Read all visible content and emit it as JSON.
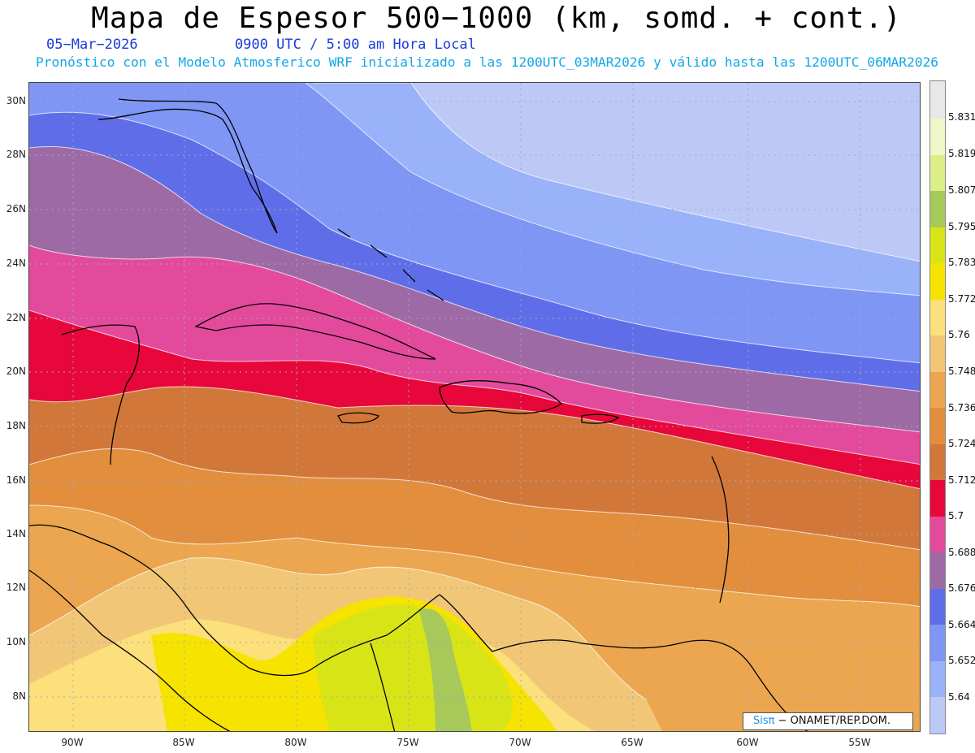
{
  "header": {
    "title": "Mapa de Espesor 500−1000 (km, somd. + cont.)",
    "date": "05−Mar−2026",
    "time": "0900 UTC / 5:00 am Hora Local",
    "subtitle": "Pronóstico con el Modelo Atmosferico WRF inicializado a las 1200UTC_03MAR2026 y válido hasta las  1200UTC_06MAR2026"
  },
  "map": {
    "lat_labels": [
      "30N",
      "28N",
      "26N",
      "24N",
      "22N",
      "20N",
      "18N",
      "16N",
      "14N",
      "12N",
      "10N",
      "8N"
    ],
    "lon_labels": [
      "90W",
      "85W",
      "80W",
      "75W",
      "70W",
      "65W",
      "60W",
      "55W"
    ],
    "credit_logo": "Sisπ",
    "credit_text": " − ONAMET/REP.DOM."
  },
  "colorbar": {
    "labels": [
      "5.64",
      "5.652",
      "5.664",
      "5.676",
      "5.688",
      "5.7",
      "5.712",
      "5.724",
      "5.736",
      "5.748",
      "5.76",
      "5.772",
      "5.783",
      "5.795",
      "5.807",
      "5.819",
      "5.831"
    ],
    "colors": [
      "#bcc8f6",
      "#9ab2fa",
      "#7f96f5",
      "#5f6ee8",
      "#9d6aa6",
      "#e34a9c",
      "#e8073a",
      "#d2773a",
      "#e28e3c",
      "#eca64f",
      "#f1c676",
      "#fbe07b",
      "#f6e300",
      "#d9e417",
      "#a6c95a",
      "#dcee88",
      "#f0f6c8",
      "#e8e8e8"
    ]
  },
  "legend_colors": {
    "coast": "#000000",
    "grid": "#a8a8b8"
  }
}
